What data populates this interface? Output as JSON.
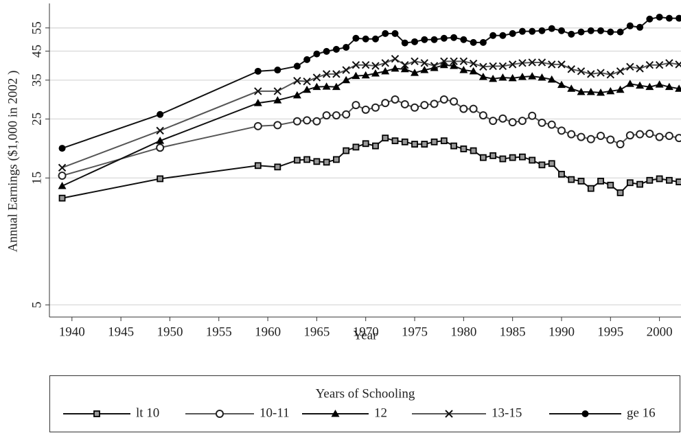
{
  "chart_data": {
    "type": "line",
    "x_label": "Year",
    "y_label": "Annual Earnings ($1,000 in 2002 )",
    "legend_title": "Years of Schooling",
    "legend_position": "bottom",
    "log_y": true,
    "grid": true,
    "xlim": [
      1937.7,
      2002.2
    ],
    "ylim": [
      4.5,
      68
    ],
    "xticks": [
      1940,
      1945,
      1950,
      1955,
      1960,
      1965,
      1970,
      1975,
      1980,
      1985,
      1990,
      1995,
      2000
    ],
    "yticks": [
      5,
      15,
      25,
      35,
      45,
      55
    ],
    "x": [
      1939,
      1949,
      1959,
      1961,
      1963,
      1964,
      1965,
      1966,
      1967,
      1968,
      1969,
      1970,
      1971,
      1972,
      1973,
      1974,
      1975,
      1976,
      1977,
      1978,
      1979,
      1980,
      1981,
      1982,
      1983,
      1984,
      1985,
      1986,
      1987,
      1988,
      1989,
      1990,
      1991,
      1992,
      1993,
      1994,
      1995,
      1996,
      1997,
      1998,
      1999,
      2000,
      2001,
      2002
    ],
    "series": [
      {
        "name": "lt 10",
        "color": "#111111",
        "marker": "square",
        "values": [
          12.6,
          14.9,
          16.7,
          16.5,
          17.5,
          17.6,
          17.3,
          17.2,
          17.6,
          19.0,
          19.6,
          20.2,
          19.8,
          21.2,
          20.7,
          20.5,
          20.1,
          20.1,
          20.5,
          20.7,
          19.8,
          19.3,
          19.0,
          17.9,
          18.2,
          17.7,
          17.9,
          18.0,
          17.5,
          16.8,
          17.0,
          15.5,
          14.8,
          14.6,
          13.7,
          14.6,
          14.1,
          13.2,
          14.4,
          14.2,
          14.7,
          14.9,
          14.7,
          14.5
        ]
      },
      {
        "name": "10-11",
        "color": "#555555",
        "marker": "circle",
        "values": [
          15.3,
          19.5,
          23.5,
          23.7,
          24.5,
          24.7,
          24.5,
          25.8,
          25.8,
          26.0,
          28.2,
          27.1,
          27.6,
          28.7,
          29.6,
          28.4,
          27.6,
          28.2,
          28.5,
          29.6,
          29.1,
          27.3,
          27.3,
          25.8,
          24.6,
          25.1,
          24.3,
          24.6,
          25.7,
          24.2,
          23.8,
          22.6,
          21.9,
          21.4,
          21.0,
          21.6,
          20.9,
          20.1,
          21.7,
          21.9,
          22.0,
          21.4,
          21.6,
          21.2
        ]
      },
      {
        "name": "12",
        "color": "#111111",
        "marker": "triangle",
        "values": [
          14.0,
          20.7,
          28.7,
          29.4,
          30.7,
          32.2,
          33.0,
          33.1,
          33.0,
          35.0,
          36.3,
          36.5,
          37.1,
          37.8,
          38.7,
          38.5,
          37.3,
          38.2,
          38.9,
          39.9,
          39.6,
          38.2,
          37.8,
          36.0,
          35.4,
          35.8,
          35.6,
          36.0,
          36.2,
          35.8,
          35.2,
          33.6,
          32.5,
          31.6,
          31.6,
          31.4,
          31.8,
          32.2,
          33.9,
          33.4,
          33.0,
          33.7,
          33.0,
          32.5
        ]
      },
      {
        "name": "13-15",
        "color": "#555555",
        "marker": "cross",
        "values": [
          16.4,
          22.6,
          31.8,
          31.8,
          34.8,
          34.6,
          35.8,
          36.9,
          36.9,
          38.2,
          39.9,
          39.9,
          39.6,
          40.6,
          42.1,
          39.9,
          41.2,
          40.6,
          39.6,
          41.2,
          41.2,
          41.2,
          40.4,
          39.3,
          39.5,
          39.5,
          40.1,
          40.6,
          40.8,
          40.8,
          40.1,
          40.1,
          38.5,
          37.8,
          36.9,
          37.3,
          36.7,
          37.8,
          39.3,
          38.7,
          39.9,
          39.9,
          40.6,
          40.1
        ]
      },
      {
        "name": "ge 16",
        "color": "#111111",
        "marker": "dot",
        "values": [
          19.4,
          26.0,
          37.8,
          38.2,
          39.5,
          41.8,
          43.9,
          44.9,
          45.7,
          46.5,
          50.3,
          50.0,
          50.0,
          52.4,
          52.4,
          48.3,
          48.8,
          49.7,
          49.7,
          50.3,
          50.6,
          49.7,
          48.5,
          48.5,
          51.5,
          51.5,
          52.4,
          53.4,
          53.4,
          53.7,
          54.7,
          53.7,
          52.1,
          53.1,
          53.7,
          53.7,
          53.1,
          53.1,
          56.0,
          55.3,
          59.4,
          60.4,
          59.8,
          59.8
        ]
      }
    ]
  }
}
